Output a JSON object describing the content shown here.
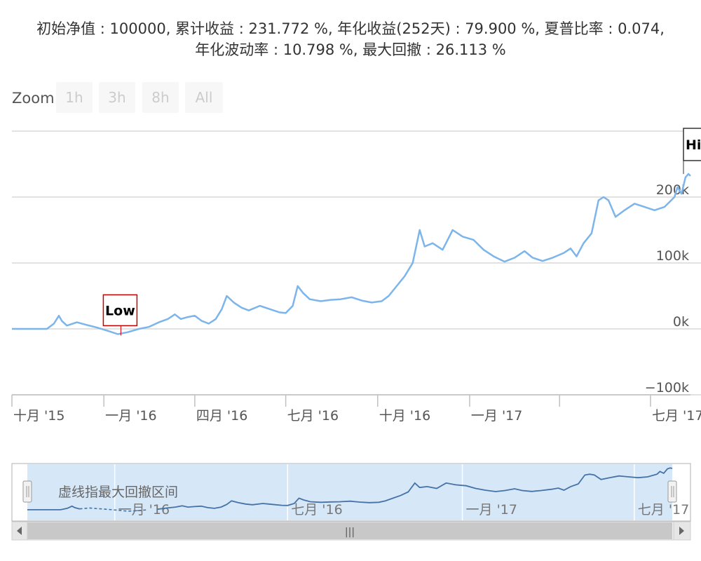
{
  "chart_data": {
    "type": "line",
    "title_lines": [
      "初始净值 : 100000, 累计收益 : 231.772 %, 年化收益(252天) : 79.900 %, 夏普比率 : 0.074,",
      "年化波动率 : 10.798 %, 最大回撤 : 26.113 %"
    ],
    "zoom": {
      "label": "Zoom",
      "buttons": [
        "1h",
        "3h",
        "8h",
        "All"
      ]
    },
    "y_axis": {
      "ticks": [
        -100000,
        0,
        100000,
        200000
      ],
      "tick_labels": [
        "−100k",
        "0k",
        "100k",
        "200k"
      ],
      "range": [
        -100000,
        300000
      ]
    },
    "x_axis": {
      "range": [
        "2015-10-01",
        "2017-08-10"
      ],
      "ticks": [
        {
          "date": "2015-10-01",
          "label": "十月 '15"
        },
        {
          "date": "2016-01-01",
          "label": "一月 '16"
        },
        {
          "date": "2016-04-01",
          "label": "四月 '16"
        },
        {
          "date": "2016-07-01",
          "label": "七月 '16"
        },
        {
          "date": "2016-10-01",
          "label": "十月 '16"
        },
        {
          "date": "2017-01-01",
          "label": "一月 '17"
        },
        {
          "date": "2017-04-01",
          "label": ""
        },
        {
          "date": "2017-07-01",
          "label": "七月 '17"
        }
      ]
    },
    "series": [
      {
        "color": "#7cb5ec",
        "points": [
          [
            "2015-10-01",
            0
          ],
          [
            "2015-10-20",
            0
          ],
          [
            "2015-11-05",
            0
          ],
          [
            "2015-11-12",
            8000
          ],
          [
            "2015-11-17",
            20000
          ],
          [
            "2015-11-20",
            12000
          ],
          [
            "2015-11-25",
            5000
          ],
          [
            "2015-12-05",
            10000
          ],
          [
            "2015-12-15",
            6000
          ],
          [
            "2015-12-25",
            2000
          ],
          [
            "2016-01-05",
            -3000
          ],
          [
            "2016-01-15",
            -8000
          ],
          [
            "2016-01-25",
            -5000
          ],
          [
            "2016-02-05",
            0
          ],
          [
            "2016-02-15",
            3000
          ],
          [
            "2016-02-25",
            10000
          ],
          [
            "2016-03-05",
            15000
          ],
          [
            "2016-03-12",
            22000
          ],
          [
            "2016-03-18",
            15000
          ],
          [
            "2016-03-25",
            18000
          ],
          [
            "2016-04-01",
            20000
          ],
          [
            "2016-04-08",
            12000
          ],
          [
            "2016-04-15",
            8000
          ],
          [
            "2016-04-22",
            15000
          ],
          [
            "2016-04-28",
            30000
          ],
          [
            "2016-05-03",
            50000
          ],
          [
            "2016-05-10",
            40000
          ],
          [
            "2016-05-18",
            32000
          ],
          [
            "2016-05-25",
            28000
          ],
          [
            "2016-06-05",
            35000
          ],
          [
            "2016-06-15",
            30000
          ],
          [
            "2016-06-25",
            25000
          ],
          [
            "2016-07-01",
            24000
          ],
          [
            "2016-07-08",
            35000
          ],
          [
            "2016-07-13",
            65000
          ],
          [
            "2016-07-18",
            55000
          ],
          [
            "2016-07-25",
            45000
          ],
          [
            "2016-08-05",
            42000
          ],
          [
            "2016-08-15",
            44000
          ],
          [
            "2016-08-25",
            45000
          ],
          [
            "2016-09-05",
            48000
          ],
          [
            "2016-09-15",
            43000
          ],
          [
            "2016-09-25",
            40000
          ],
          [
            "2016-10-05",
            42000
          ],
          [
            "2016-10-12",
            50000
          ],
          [
            "2016-10-20",
            65000
          ],
          [
            "2016-10-28",
            80000
          ],
          [
            "2016-11-05",
            100000
          ],
          [
            "2016-11-12",
            150000
          ],
          [
            "2016-11-17",
            125000
          ],
          [
            "2016-11-25",
            130000
          ],
          [
            "2016-12-05",
            120000
          ],
          [
            "2016-12-15",
            150000
          ],
          [
            "2016-12-25",
            140000
          ],
          [
            "2017-01-05",
            135000
          ],
          [
            "2017-01-15",
            120000
          ],
          [
            "2017-01-25",
            110000
          ],
          [
            "2017-02-05",
            102000
          ],
          [
            "2017-02-15",
            108000
          ],
          [
            "2017-02-25",
            118000
          ],
          [
            "2017-03-05",
            108000
          ],
          [
            "2017-03-15",
            103000
          ],
          [
            "2017-03-25",
            108000
          ],
          [
            "2017-04-05",
            115000
          ],
          [
            "2017-04-12",
            122000
          ],
          [
            "2017-04-18",
            110000
          ],
          [
            "2017-04-25",
            130000
          ],
          [
            "2017-05-03",
            145000
          ],
          [
            "2017-05-10",
            195000
          ],
          [
            "2017-05-15",
            200000
          ],
          [
            "2017-05-20",
            195000
          ],
          [
            "2017-05-27",
            170000
          ],
          [
            "2017-06-05",
            180000
          ],
          [
            "2017-06-15",
            190000
          ],
          [
            "2017-06-25",
            185000
          ],
          [
            "2017-07-05",
            180000
          ],
          [
            "2017-07-15",
            185000
          ],
          [
            "2017-07-25",
            200000
          ],
          [
            "2017-07-28",
            215000
          ],
          [
            "2017-08-01",
            205000
          ],
          [
            "2017-08-05",
            230000
          ],
          [
            "2017-08-08",
            235000
          ],
          [
            "2017-08-10",
            232000
          ]
        ]
      }
    ],
    "flags": [
      {
        "label": "Low",
        "date": "2016-01-18",
        "value": -10000
      },
      {
        "label": "Hig",
        "date": "2017-08-10",
        "value": 235000
      }
    ],
    "navigator": {
      "note": "虚线指最大回撤区间",
      "tick_labels": [
        {
          "date": "2016-01-01",
          "label": "一月 '16"
        },
        {
          "date": "2016-07-01",
          "label": "七月 '16"
        },
        {
          "date": "2017-01-01",
          "label": "一月 '17"
        },
        {
          "date": "2017-07-01",
          "label": "七月 '17"
        }
      ],
      "drawdown_range": [
        "2015-11-25",
        "2016-02-10"
      ]
    },
    "scrollbar": {
      "thumb_symbol": "|||"
    },
    "colors": {
      "line": "#7cb5ec",
      "navigator_line": "#4572a7",
      "navigator_mask": "#d6e7f8",
      "flag_border": "#cc0000"
    }
  }
}
